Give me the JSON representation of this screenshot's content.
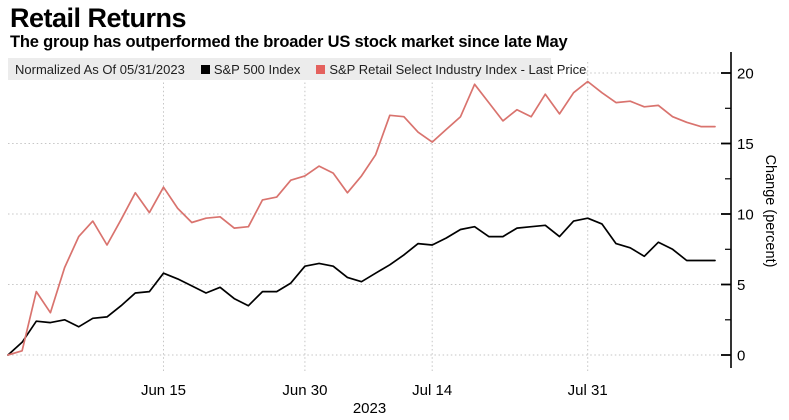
{
  "title": "Retail Returns",
  "subtitle": "The group has outperformed the broader US stock market since late May",
  "legend": {
    "note": "Normalized As Of 05/31/2023",
    "series": [
      {
        "label": "S&P 500 Index",
        "color": "#000000"
      },
      {
        "label": "S&P Retail Select Industry Index - Last Price",
        "color": "#e4615d"
      }
    ]
  },
  "chart_data": {
    "type": "line",
    "title": "Retail Returns",
    "xlabel": "",
    "ylabel": "Change (percent)",
    "x_axis_year": "2023",
    "x_unit": "trading days since 2023-05-31 (normalized start)",
    "ylim": [
      0,
      20
    ],
    "y_ticks": [
      0,
      5,
      10,
      15,
      20
    ],
    "y_minor_ticks": [
      2.5,
      7.5,
      12.5,
      17.5
    ],
    "grid": "dotted",
    "legend_position": "top",
    "x_ticks": [
      {
        "label": "Jun 15",
        "index": 11
      },
      {
        "label": "Jun 30",
        "index": 21
      },
      {
        "label": "Jul 14",
        "index": 30
      },
      {
        "label": "Jul 31",
        "index": 41
      }
    ],
    "series": [
      {
        "name": "S&P 500 Index",
        "color": "#000000",
        "values": [
          0.0,
          0.9,
          2.4,
          2.3,
          2.5,
          2.0,
          2.6,
          2.7,
          3.5,
          4.4,
          4.5,
          5.8,
          5.4,
          4.9,
          4.4,
          4.8,
          4.0,
          3.5,
          4.5,
          4.5,
          5.1,
          6.3,
          6.5,
          6.3,
          5.5,
          5.2,
          5.8,
          6.4,
          7.1,
          7.9,
          7.8,
          8.3,
          8.9,
          9.1,
          8.4,
          8.4,
          9.0,
          9.1,
          9.2,
          8.4,
          9.5,
          9.7,
          9.3,
          7.9,
          7.6,
          7.0,
          8.0,
          7.5,
          6.7,
          6.7,
          6.7
        ]
      },
      {
        "name": "S&P Retail Select Industry Index - Last Price",
        "color": "#d9736e",
        "values": [
          0.0,
          0.3,
          4.5,
          3.0,
          6.2,
          8.4,
          9.5,
          7.8,
          9.6,
          11.5,
          10.1,
          11.9,
          10.4,
          9.4,
          9.7,
          9.8,
          9.0,
          9.1,
          11.0,
          11.2,
          12.4,
          12.7,
          13.4,
          12.9,
          11.5,
          12.7,
          14.2,
          17.0,
          16.9,
          15.8,
          15.1,
          16.0,
          16.9,
          19.2,
          17.9,
          16.6,
          17.4,
          16.9,
          18.5,
          17.1,
          18.6,
          19.4,
          18.6,
          17.9,
          18.0,
          17.6,
          17.7,
          16.9,
          16.5,
          16.2,
          16.2
        ]
      }
    ]
  }
}
